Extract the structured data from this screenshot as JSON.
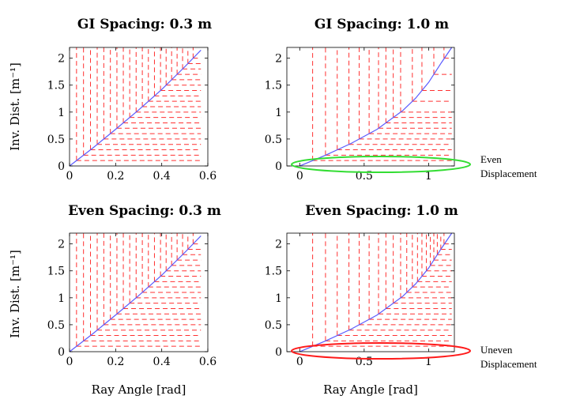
{
  "colors": {
    "curve": "#5b5bff",
    "grid": "#ff3030",
    "even_ellipse": "#33dd33",
    "uneven_ellipse": "#ff1a1a"
  },
  "chart_data": [
    {
      "type": "line",
      "title": "GI Spacing: 0.3 m",
      "ylabel": "Inv. Dist. [m⁻¹]",
      "xlabel": "",
      "xlim": [
        0,
        0.6
      ],
      "ylim": [
        0,
        2.2
      ],
      "xticks": [
        0,
        0.2,
        0.4,
        0.6
      ],
      "xtick_labels": [
        "0",
        "0.2",
        "0.4",
        "0.6"
      ],
      "yticks": [
        0,
        0.5,
        1,
        1.5,
        2
      ],
      "ytick_labels": [
        "0",
        "0.5",
        "1",
        "1.5",
        "2"
      ],
      "grid_lines": {
        "horizontal_y": [
          0.1,
          0.2,
          0.3,
          0.4,
          0.5,
          0.6,
          0.7,
          0.8,
          0.9,
          1.0,
          1.1,
          1.2,
          1.3,
          1.4,
          1.5,
          1.6,
          1.7,
          1.8,
          1.9,
          2.0
        ],
        "vertical": "aligned_with_horizontal_via_curve"
      },
      "curve": {
        "x": [
          0,
          0.1,
          0.2,
          0.3,
          0.4,
          0.5,
          0.57
        ],
        "y": [
          0,
          0.33,
          0.68,
          1.04,
          1.42,
          1.84,
          2.15
        ]
      }
    },
    {
      "type": "line",
      "title": "GI Spacing: 1.0 m",
      "ylabel": "",
      "xlabel": "",
      "xlim": [
        -0.1,
        1.2
      ],
      "ylim": [
        0,
        2.2
      ],
      "xticks": [
        0,
        0.5,
        1
      ],
      "xtick_labels": [
        "0",
        "0.5",
        "1"
      ],
      "yticks": [
        0,
        0.5,
        1,
        1.5,
        2
      ],
      "ytick_labels": [
        "0",
        "0.5",
        "1",
        "1.5",
        "2"
      ],
      "grid_lines": {
        "horizontal_y": [
          0.1,
          0.2,
          0.3,
          0.4,
          0.5,
          0.6,
          0.7,
          0.8,
          0.9,
          1.0,
          1.2,
          1.4,
          1.7,
          2.0
        ],
        "vertical": "aligned_with_horizontal_via_curve"
      },
      "curve": {
        "x": [
          0,
          0.2,
          0.4,
          0.6,
          0.8,
          0.9,
          1.0,
          1.1,
          1.18
        ],
        "y": [
          0,
          0.2,
          0.42,
          0.68,
          1.03,
          1.26,
          1.55,
          1.92,
          2.25
        ]
      },
      "annotation": {
        "text_lines": [
          "Even",
          "Displacement"
        ],
        "marker": "green ellipse around y=0 band"
      }
    },
    {
      "type": "line",
      "title": "Even Spacing: 0.3 m",
      "ylabel": "Inv. Dist. [m⁻¹]",
      "xlabel": "Ray Angle [rad]",
      "xlim": [
        0,
        0.6
      ],
      "ylim": [
        0,
        2.2
      ],
      "xticks": [
        0,
        0.2,
        0.4,
        0.6
      ],
      "xtick_labels": [
        "0",
        "0.2",
        "0.4",
        "0.6"
      ],
      "yticks": [
        0,
        0.5,
        1,
        1.5,
        2
      ],
      "ytick_labels": [
        "0",
        "0.5",
        "1",
        "1.5",
        "2"
      ],
      "grid_lines": {
        "horizontal_y": [
          0.1,
          0.2,
          0.3,
          0.4,
          0.5,
          0.6,
          0.7,
          0.8,
          0.9,
          1.0,
          1.1,
          1.2,
          1.3,
          1.4,
          1.5,
          1.6,
          1.7,
          1.8,
          1.9,
          2.0
        ],
        "vertical": "aligned_with_horizontal_via_curve"
      },
      "curve": {
        "x": [
          0,
          0.1,
          0.2,
          0.3,
          0.4,
          0.5,
          0.57
        ],
        "y": [
          0,
          0.33,
          0.68,
          1.04,
          1.42,
          1.84,
          2.15
        ]
      }
    },
    {
      "type": "line",
      "title": "Even Spacing: 1.0 m",
      "ylabel": "",
      "xlabel": "Ray Angle [rad]",
      "xlim": [
        -0.1,
        1.2
      ],
      "ylim": [
        0,
        2.2
      ],
      "xticks": [
        0,
        0.5,
        1
      ],
      "xtick_labels": [
        "0",
        "0.5",
        "1"
      ],
      "yticks": [
        0,
        0.5,
        1,
        1.5,
        2
      ],
      "ytick_labels": [
        "0",
        "0.5",
        "1",
        "1.5",
        "2"
      ],
      "grid_lines": {
        "horizontal_y": [
          0.1,
          0.2,
          0.3,
          0.4,
          0.5,
          0.6,
          0.7,
          0.8,
          0.9,
          1.0,
          1.1,
          1.2,
          1.3,
          1.4,
          1.5,
          1.6,
          1.7,
          1.8,
          1.9,
          2.0
        ],
        "vertical": "aligned_with_horizontal_via_curve"
      },
      "curve": {
        "x": [
          0,
          0.2,
          0.4,
          0.6,
          0.8,
          0.9,
          1.0,
          1.1,
          1.18
        ],
        "y": [
          0,
          0.2,
          0.42,
          0.68,
          1.03,
          1.26,
          1.55,
          1.92,
          2.25
        ]
      },
      "annotation": {
        "text_lines": [
          "Uneven",
          "Displacement"
        ],
        "marker": "red ellipse around y=0 band"
      }
    }
  ]
}
